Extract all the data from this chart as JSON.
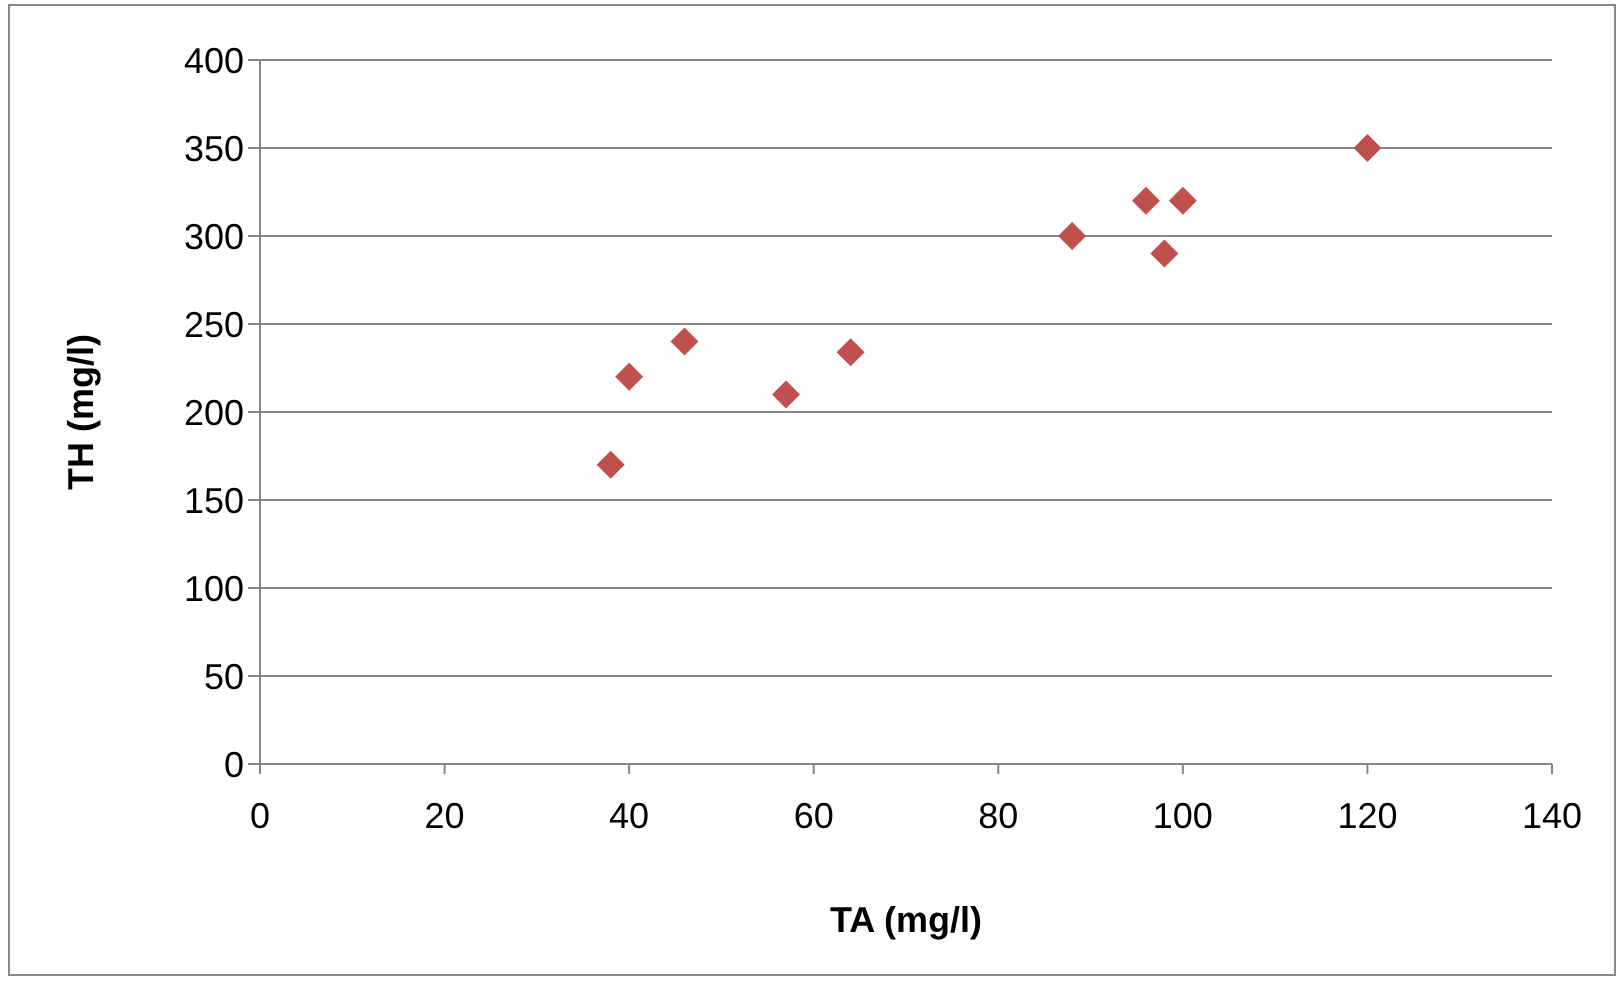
{
  "chart_data": {
    "type": "scatter",
    "xlabel": "TA (mg/l)",
    "ylabel": "TH (mg/l)",
    "x": [
      38,
      40,
      46,
      57,
      64,
      88,
      96,
      98,
      100,
      120
    ],
    "series": [
      {
        "color": "#c0504d",
        "values": [
          170,
          220,
          240,
          210,
          234,
          300,
          320,
          290,
          320,
          350
        ]
      }
    ],
    "xlim": [
      0,
      140
    ],
    "xticks": [
      0,
      20,
      40,
      60,
      80,
      100,
      120,
      140
    ],
    "ylim": [
      0,
      400
    ],
    "yticks": [
      0,
      50,
      100,
      150,
      200,
      250,
      300,
      350,
      400
    ],
    "grid": "y",
    "marker": "diamond",
    "legend": false
  }
}
